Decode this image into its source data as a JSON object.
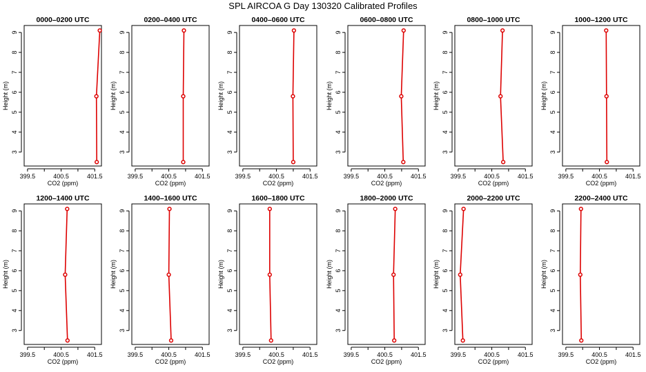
{
  "title": "SPL AIRCOA G  Day 130320  Calibrated Profiles",
  "chart_data": {
    "type": "line",
    "xlabel": "CO2 (ppm)",
    "ylabel": "Height (m)",
    "xlim": [
      399.4,
      401.7
    ],
    "ylim": [
      2.3,
      9.35
    ],
    "xticks": [
      399.5,
      400.0,
      400.5,
      401.0,
      401.5
    ],
    "xtick_labels": [
      "399.5",
      "",
      "400.5",
      "",
      "401.5"
    ],
    "yticks": [
      3,
      4,
      5,
      6,
      7,
      8,
      9
    ],
    "heights": [
      2.5,
      5.8,
      9.1
    ],
    "line_color": "#dd0000",
    "marker_color": "#dd0000",
    "panels": [
      {
        "title": "0000–0200 UTC",
        "co2": [
          401.56,
          401.55,
          401.65
        ]
      },
      {
        "title": "0200–0400 UTC",
        "co2": [
          400.93,
          400.93,
          400.95
        ]
      },
      {
        "title": "0400–0600 UTC",
        "co2": [
          401.0,
          400.99,
          401.02
        ]
      },
      {
        "title": "0600–0800 UTC",
        "co2": [
          401.05,
          400.99,
          401.06
        ]
      },
      {
        "title": "0800–1000 UTC",
        "co2": [
          400.84,
          400.76,
          400.82
        ]
      },
      {
        "title": "1000–1200 UTC",
        "co2": [
          400.72,
          400.71,
          400.7
        ]
      },
      {
        "title": "1200–1400 UTC",
        "co2": [
          400.69,
          400.62,
          400.68
        ]
      },
      {
        "title": "1400–1600 UTC",
        "co2": [
          400.57,
          400.5,
          400.52
        ]
      },
      {
        "title": "1600–1800 UTC",
        "co2": [
          400.34,
          400.3,
          400.3
        ]
      },
      {
        "title": "1800–2000 UTC",
        "co2": [
          400.78,
          400.76,
          400.81
        ]
      },
      {
        "title": "2000–2200 UTC",
        "co2": [
          399.64,
          399.56,
          399.66
        ]
      },
      {
        "title": "2200–2400 UTC",
        "co2": [
          399.96,
          399.93,
          399.95
        ]
      }
    ]
  }
}
